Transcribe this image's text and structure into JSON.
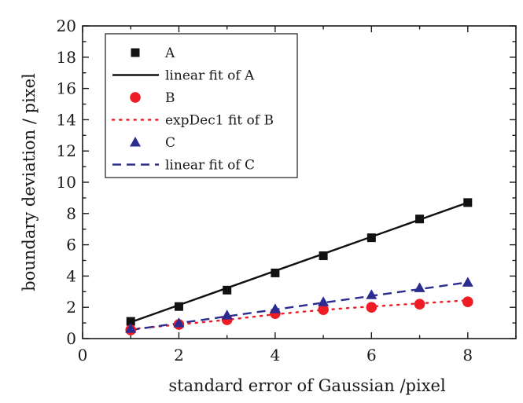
{
  "chart_data": {
    "type": "scatter",
    "title": "",
    "xlabel": "standard error of Gaussian /pixel",
    "ylabel": "boundary deviation / pixel",
    "xlim": [
      0,
      9
    ],
    "ylim": [
      0,
      20
    ],
    "xticks": [
      0,
      2,
      4,
      6,
      8
    ],
    "yticks": [
      0,
      2,
      4,
      6,
      8,
      10,
      12,
      14,
      16,
      18,
      20
    ],
    "grid": false,
    "legend_position": "top-left",
    "series": [
      {
        "name": "A",
        "kind": "points",
        "marker": "square",
        "color": "#111111",
        "x": [
          1,
          2,
          3,
          4,
          5,
          6,
          7,
          8
        ],
        "y": [
          1.1,
          2.05,
          3.1,
          4.2,
          5.3,
          6.45,
          7.65,
          8.7
        ]
      },
      {
        "name": "linear fit of A",
        "kind": "line",
        "dash": "solid",
        "color": "#111111",
        "x": [
          1,
          8
        ],
        "y": [
          1.05,
          8.7
        ]
      },
      {
        "name": "B",
        "kind": "points",
        "marker": "circle",
        "color": "#ee1c24",
        "x": [
          1,
          2,
          3,
          4,
          5,
          6,
          7,
          8
        ],
        "y": [
          0.55,
          0.9,
          1.2,
          1.6,
          1.85,
          2.0,
          2.2,
          2.35
        ]
      },
      {
        "name": "expDec1 fit of B",
        "kind": "line",
        "dash": "dotted",
        "color": "#ee1c24",
        "x": [
          1,
          1.5,
          2,
          2.5,
          3,
          3.5,
          4,
          4.5,
          5,
          5.5,
          6,
          6.5,
          7,
          7.5,
          8
        ],
        "y": [
          0.6,
          0.75,
          0.9,
          1.05,
          1.2,
          1.38,
          1.55,
          1.7,
          1.83,
          1.95,
          2.05,
          2.15,
          2.25,
          2.35,
          2.45
        ]
      },
      {
        "name": "C",
        "kind": "points",
        "marker": "triangle",
        "color": "#2b2c8f",
        "x": [
          1,
          2,
          3,
          4,
          5,
          6,
          7,
          8
        ],
        "y": [
          0.65,
          1.0,
          1.5,
          1.9,
          2.35,
          2.8,
          3.25,
          3.6
        ]
      },
      {
        "name": "linear fit of C",
        "kind": "line",
        "dash": "dashed",
        "color": "#2b2c8f",
        "x": [
          1,
          8
        ],
        "y": [
          0.55,
          3.6
        ]
      }
    ]
  }
}
